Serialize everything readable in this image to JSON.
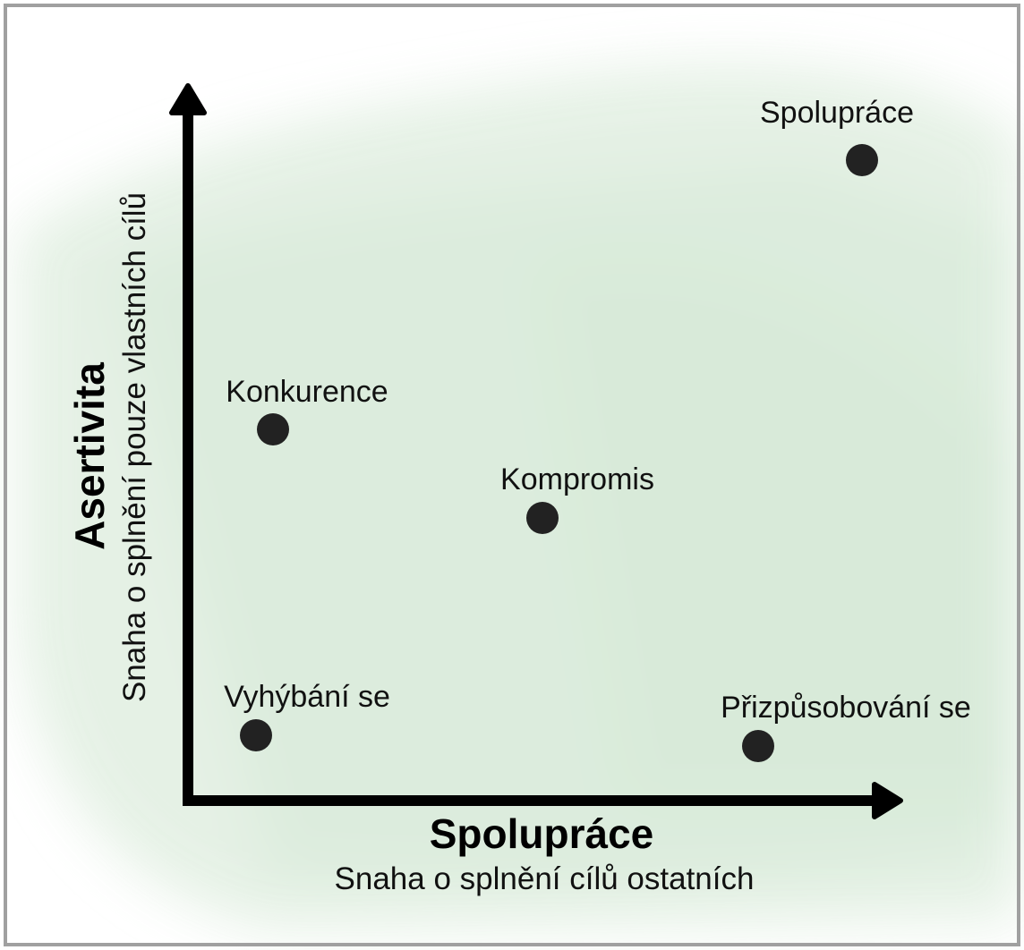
{
  "axes": {
    "x": {
      "title": "Spolupráce",
      "subtitle": "Snaha o splnění cílů ostatních"
    },
    "y": {
      "title": "Asertivita",
      "subtitle": "Snaha o splnění pouze vlastních cílů"
    }
  },
  "nodes": [
    {
      "label": "Spolupráce"
    },
    {
      "label": "Konkurence"
    },
    {
      "label": "Kompromis"
    },
    {
      "label": "Vyhýbání se"
    },
    {
      "label": "Přizpůsobování se"
    }
  ]
}
